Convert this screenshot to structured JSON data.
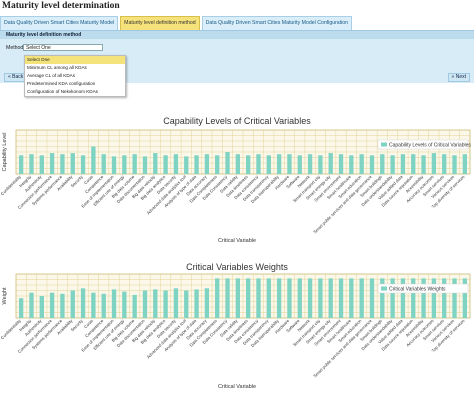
{
  "page_title": "Maturity level determination",
  "tabs": [
    {
      "label": "Data Quality Driven Smart Cities Maturity Model",
      "active": false
    },
    {
      "label": "Maturity level definition method",
      "active": true
    },
    {
      "label": "Data Quality Driven Smart Cities Maturity Model Configuration",
      "active": false
    }
  ],
  "panel": {
    "header": "Maturity level definition method",
    "method_label": "Method",
    "selected_value": "Select One",
    "options": [
      "Select One",
      "Minimum CL among all KDAs",
      "Average CL of all KDAs",
      "Predetermined KDA configuration",
      "Configuration of Nekvkonom KDAs"
    ],
    "back_label": "« Back",
    "next_label": "» Next"
  },
  "colors": {
    "bar": "#7fd3c2",
    "grid": "#d9c77a",
    "accent": "#f6e27a"
  },
  "chart_data": [
    {
      "type": "bar",
      "title": "Capability Levels of Critical Variables",
      "xlabel": "Critical Variable",
      "ylabel": "Capability Level",
      "ylim": [
        0,
        4
      ],
      "legend": "Capability Levels of Critical Variables",
      "legend_position": "right",
      "grid": true,
      "categories": [
        "Confidentiality",
        "Integrity",
        "Authenticity",
        "Connection performance",
        "Systems performance",
        "Availability",
        "Security",
        "Costs",
        "Competence",
        "Ease of implementation",
        "Efficient use of energy",
        "Big data volume",
        "Data documentation",
        "Big data velocity",
        "Big data analytics",
        "Data security",
        "Advanced data analytics tool",
        "Analysis of type of data",
        "Data accuracy",
        "Data Completeness",
        "Data Consistency",
        "Data validity",
        "Data timeliness",
        "Data consistency",
        "Data transparency",
        "Data interoperability",
        "Hardware",
        "Software",
        "Network",
        "Smart transport city",
        "Smart energy city",
        "Smart environment",
        "Smart healthcare",
        "Smart education",
        "Smart public services and data governance",
        "Smart buildings",
        "Data understandability",
        "Value added data",
        "Data source reputation",
        "Accessibility",
        "Accuracy outcomes",
        "Smart services",
        "Various services",
        "Top diversity of services"
      ],
      "values": [
        1.7,
        1.8,
        1.7,
        1.9,
        1.8,
        1.9,
        1.7,
        2.5,
        1.8,
        1.6,
        1.7,
        1.8,
        1.6,
        1.9,
        1.7,
        1.8,
        1.6,
        1.7,
        1.8,
        1.7,
        2,
        1.8,
        1.7,
        1.8,
        1.7,
        1.8,
        1.8,
        1.7,
        1.8,
        1.7,
        1.9,
        1.8,
        1.7,
        1.8,
        1.7,
        1.8,
        1.7,
        1.8,
        1.8,
        1.7,
        1.9,
        1.8,
        1.7,
        1.8
      ]
    },
    {
      "type": "bar",
      "title": "Critical Variables Weights",
      "xlabel": "Critical Variable",
      "ylabel": "Weight",
      "ylim": [
        0,
        4
      ],
      "legend": "Critical Variables Weights",
      "legend_position": "right",
      "grid": true,
      "categories": [
        "Confidentiality",
        "Integrity",
        "Authenticity",
        "Connection performance",
        "Systems performance",
        "Availability",
        "Security",
        "Costs",
        "Competence",
        "Ease of implementation",
        "Efficient use of energy",
        "Big data volume",
        "Data documentation",
        "Big data velocity",
        "Big data analytics",
        "Data security",
        "Advanced data analytics tool",
        "Analysis of type of data",
        "Data accuracy",
        "Data Completeness",
        "Data Consistency",
        "Data validity",
        "Data timeliness",
        "Data consistency",
        "Data transparency",
        "Data interoperability",
        "Hardware",
        "Software",
        "Network",
        "Smart transport city",
        "Smart energy city",
        "Smart environment",
        "Smart healthcare",
        "Smart education",
        "Smart public services and data governance",
        "Smart buildings",
        "Data understandability",
        "Value added data",
        "Data source reputation",
        "Accessibility",
        "Accuracy outcomes",
        "Smart services",
        "Various services",
        "Top diversity of services"
      ],
      "values": [
        1.8,
        2.3,
        2,
        2.3,
        2.2,
        2.5,
        2.7,
        2.3,
        2.2,
        2.6,
        2.4,
        2.1,
        2.5,
        2.6,
        2.5,
        2.7,
        2.5,
        2.6,
        2.7,
        3.6,
        3.6,
        3.6,
        3.6,
        3.6,
        3.6,
        3.6,
        3.6,
        3.6,
        3.6,
        3.6,
        3.6,
        3.6,
        3.6,
        3.6,
        3.6,
        3.6,
        3.6,
        3.6,
        3.6,
        3.6,
        3.6,
        3.6,
        3.6,
        3.6
      ]
    }
  ]
}
